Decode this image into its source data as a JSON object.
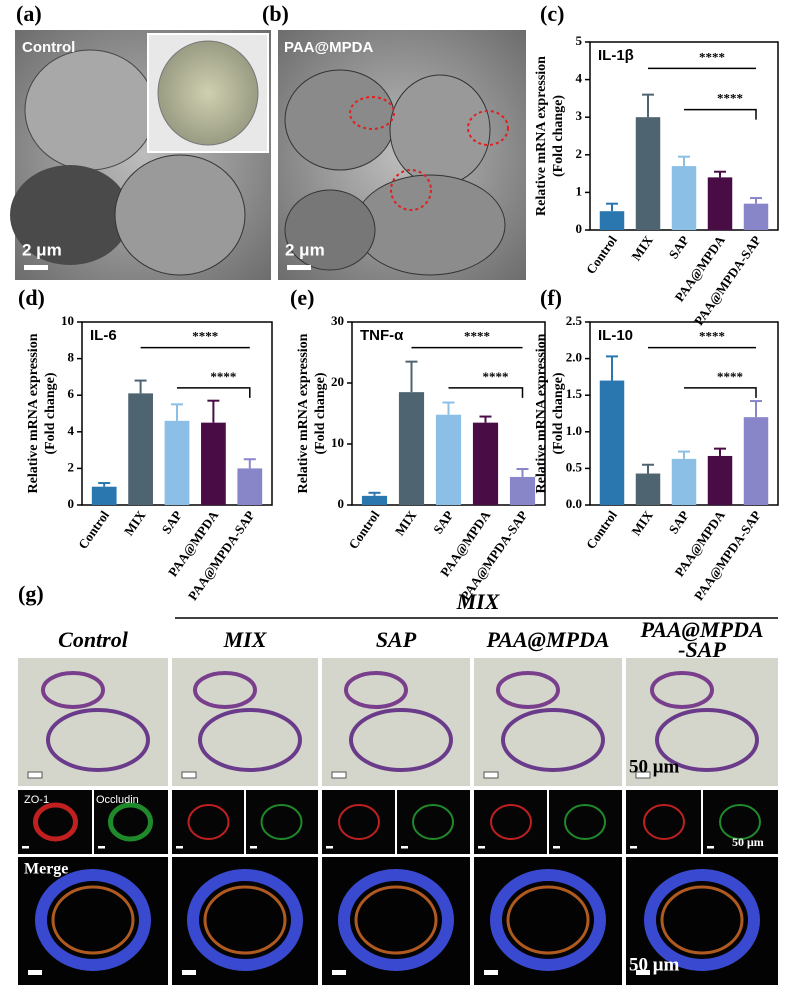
{
  "panels": {
    "a": {
      "label": "(a)",
      "caption": "Control",
      "scale": "2 μm"
    },
    "b": {
      "label": "(b)",
      "caption": "PAA@MPDA",
      "scale": "2 μm"
    }
  },
  "chart_data": [
    {
      "type": "bar",
      "panel_label": "(c)",
      "title": "IL-1β",
      "ylabel": "Relative mRNA expression",
      "ylabel2": "(Fold change)",
      "categories": [
        "Control",
        "MIX",
        "SAP",
        "PAA@MPDA",
        "PAA@MPDA-SAP"
      ],
      "values": [
        0.5,
        3.0,
        1.7,
        1.4,
        0.7
      ],
      "errors": [
        0.2,
        0.6,
        0.25,
        0.15,
        0.15
      ],
      "colors": [
        "#2a77b0",
        "#4e6470",
        "#8bbfe5",
        "#4a0c44",
        "#8985c9"
      ],
      "ylim": [
        0,
        5
      ],
      "yticks": [
        0,
        1,
        2,
        3,
        4,
        5
      ],
      "annotations": [
        "****",
        "****"
      ]
    },
    {
      "type": "bar",
      "panel_label": "(d)",
      "title": "IL-6",
      "ylabel": "Relative mRNA expression",
      "ylabel2": "(Fold change)",
      "categories": [
        "Control",
        "MIX",
        "SAP",
        "PAA@MPDA",
        "PAA@MPDA-SAP"
      ],
      "values": [
        1.0,
        6.1,
        4.6,
        4.5,
        2.0
      ],
      "errors": [
        0.2,
        0.7,
        0.9,
        1.2,
        0.5
      ],
      "colors": [
        "#2a77b0",
        "#4e6470",
        "#8bbfe5",
        "#4a0c44",
        "#8985c9"
      ],
      "ylim": [
        0,
        10
      ],
      "yticks": [
        0,
        2,
        4,
        6,
        8,
        10
      ],
      "annotations": [
        "****",
        "****"
      ]
    },
    {
      "type": "bar",
      "panel_label": "(e)",
      "title": "TNF-α",
      "ylabel": "Relative mRNA expression",
      "ylabel2": "(Fold change)",
      "categories": [
        "Control",
        "MIX",
        "SAP",
        "PAA@MPDA",
        "PAA@MPDA-SAP"
      ],
      "values": [
        1.5,
        18.5,
        14.8,
        13.5,
        4.6
      ],
      "errors": [
        0.5,
        5.0,
        2.0,
        1.0,
        1.3
      ],
      "colors": [
        "#2a77b0",
        "#4e6470",
        "#8bbfe5",
        "#4a0c44",
        "#8985c9"
      ],
      "ylim": [
        0,
        30
      ],
      "yticks": [
        0,
        10,
        20,
        30
      ],
      "annotations": [
        "****",
        "****"
      ]
    },
    {
      "type": "bar",
      "panel_label": "(f)",
      "title": "IL-10",
      "ylabel": "Relative mRNA expression",
      "ylabel2": "(Fold change)",
      "categories": [
        "Control",
        "MIX",
        "SAP",
        "PAA@MPDA",
        "PAA@MPDA-SAP"
      ],
      "values": [
        1.7,
        0.43,
        0.63,
        0.67,
        1.2
      ],
      "errors": [
        0.33,
        0.12,
        0.1,
        0.1,
        0.22
      ],
      "colors": [
        "#2a77b0",
        "#4e6470",
        "#8bbfe5",
        "#4a0c44",
        "#8985c9"
      ],
      "ylim": [
        0,
        2.5
      ],
      "yticks": [
        {
          "value": 0,
          "label": "0.0"
        },
        0.5,
        {
          "value": 1,
          "label": "1.0"
        },
        1.5,
        {
          "value": 2,
          "label": "2.0"
        },
        2.5
      ],
      "annotations": [
        "****",
        "****"
      ]
    }
  ],
  "g": {
    "label": "(g)",
    "group": "MIX",
    "columns": [
      "Control",
      "MIX",
      "SAP",
      "PAA@MPDA",
      [
        "PAA@MPDA",
        "-SAP"
      ]
    ],
    "he_scale": "50 μm",
    "zo1": "ZO-1",
    "occludin": "Occludin",
    "if_scale": "50 μm",
    "merge": "Merge",
    "merge_scale": "50 μm"
  }
}
